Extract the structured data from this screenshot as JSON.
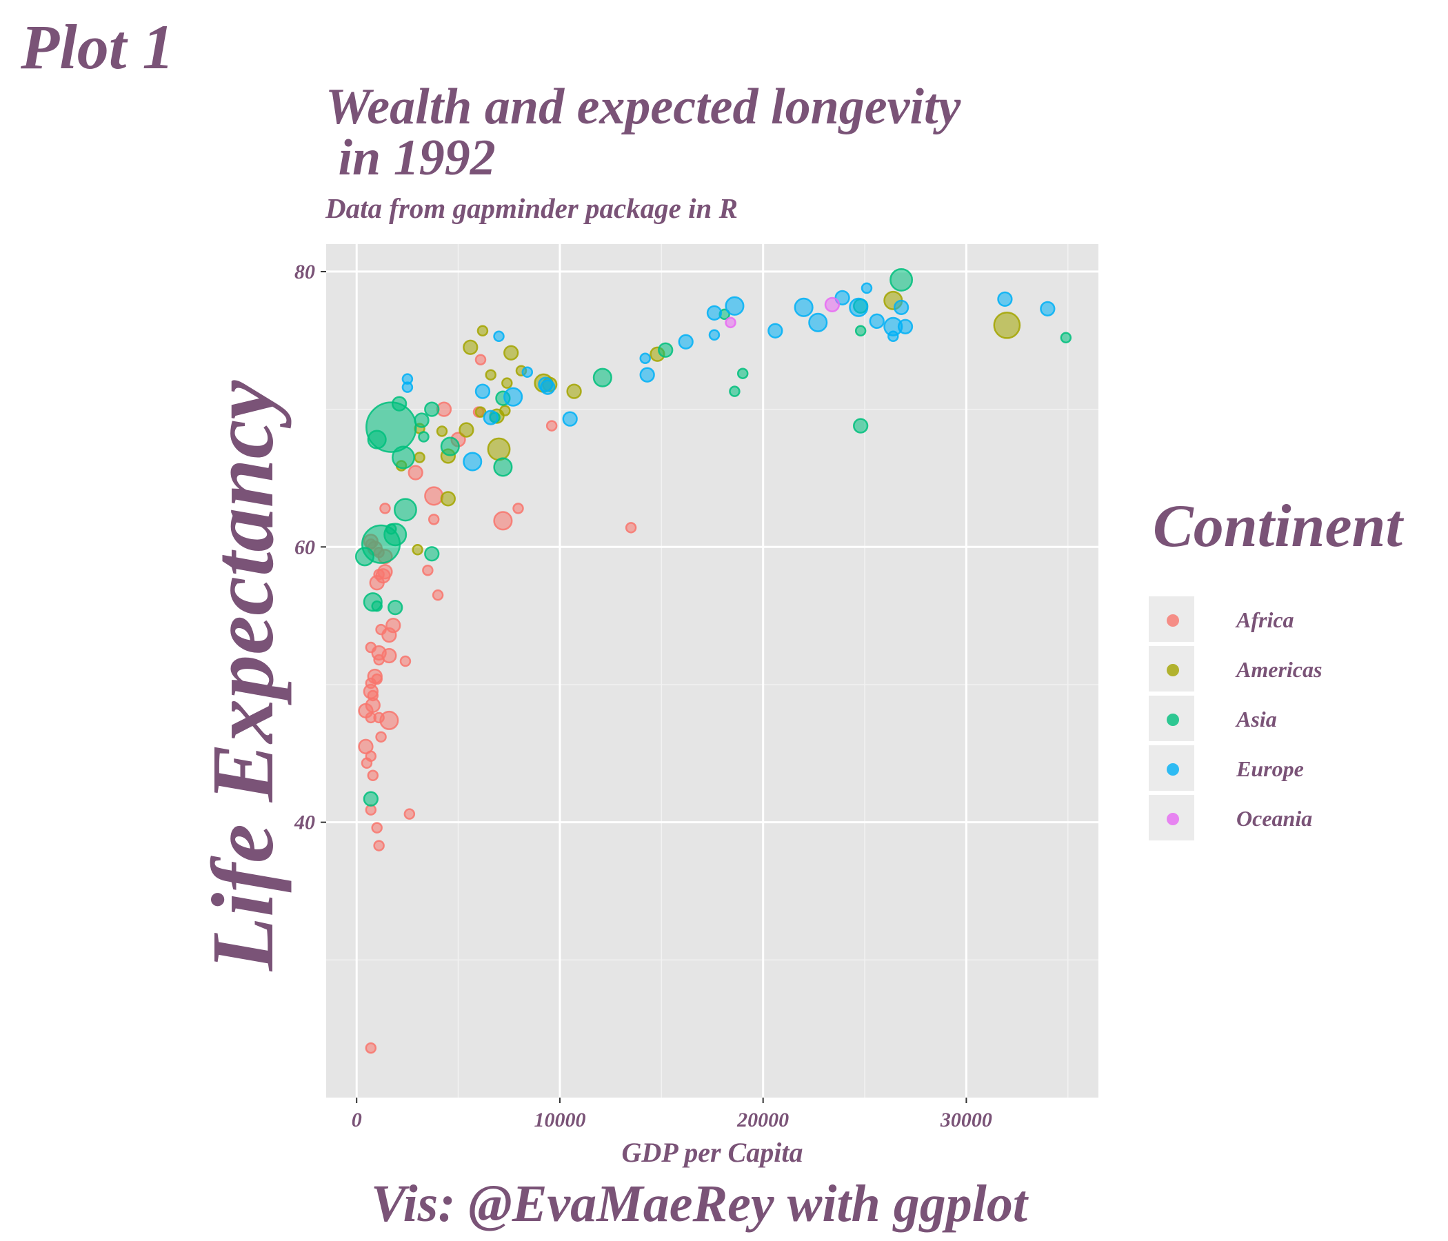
{
  "plot_label": "Plot 1",
  "chart_data": {
    "type": "scatter",
    "title": "Wealth and expected longevity\n in 1992",
    "subtitle": "Data from gapminder package in R",
    "caption": "Vis: @EvaMaeRey with ggplot",
    "xlabel": "GDP per Capita",
    "ylabel": "Life Expectancy",
    "xlim": [
      -1500,
      36500
    ],
    "ylim": [
      20,
      82
    ],
    "x_ticks": [
      0,
      10000,
      20000,
      30000
    ],
    "x_tick_labels": [
      "0",
      "10000",
      "20000",
      "30000"
    ],
    "y_ticks": [
      40,
      60,
      80
    ],
    "y_tick_labels": [
      "40",
      "60",
      "80"
    ],
    "grid": true,
    "legend": {
      "title": "Continent",
      "position": "right",
      "entries": [
        "Africa",
        "Americas",
        "Asia",
        "Europe",
        "Oceania"
      ]
    },
    "colors": {
      "Africa": "#f8766d",
      "Americas": "#a3a500",
      "Asia": "#00bf7d",
      "Europe": "#00b0f6",
      "Oceania": "#e76bf3"
    },
    "series": [
      {
        "name": "Africa",
        "points": [
          [
            700,
            23.6,
            1
          ],
          [
            2600,
            40.6,
            1
          ],
          [
            1100,
            38.3,
            1
          ],
          [
            1000,
            39.6,
            1
          ],
          [
            700,
            40.9,
            1
          ],
          [
            500,
            44.3,
            1
          ],
          [
            700,
            44.8,
            1
          ],
          [
            450,
            45.5,
            2
          ],
          [
            800,
            43.4,
            1
          ],
          [
            1200,
            46.2,
            1
          ],
          [
            1100,
            47.6,
            1
          ],
          [
            1600,
            47.4,
            3
          ],
          [
            700,
            47.6,
            1
          ],
          [
            450,
            48.1,
            2
          ],
          [
            800,
            48.5,
            2
          ],
          [
            800,
            49.2,
            1
          ],
          [
            700,
            49.5,
            2
          ],
          [
            700,
            50.1,
            1
          ],
          [
            900,
            50.6,
            2
          ],
          [
            1000,
            50.4,
            1
          ],
          [
            1100,
            51.8,
            1
          ],
          [
            1100,
            52.3,
            2
          ],
          [
            1600,
            52.1,
            2
          ],
          [
            700,
            52.7,
            1
          ],
          [
            2400,
            51.7,
            1
          ],
          [
            1600,
            53.6,
            2
          ],
          [
            1200,
            54.0,
            1
          ],
          [
            1800,
            54.3,
            2
          ],
          [
            4000,
            56.5,
            1
          ],
          [
            1000,
            57.4,
            2
          ],
          [
            1300,
            57.9,
            2
          ],
          [
            1400,
            58.2,
            2
          ],
          [
            1100,
            58.0,
            1
          ],
          [
            3500,
            58.3,
            1
          ],
          [
            1400,
            59.3,
            2
          ],
          [
            900,
            59.9,
            2
          ],
          [
            1100,
            59.6,
            1
          ],
          [
            700,
            60.2,
            1
          ],
          [
            700,
            60.4,
            2
          ],
          [
            3800,
            62.0,
            1
          ],
          [
            1400,
            62.8,
            1
          ],
          [
            7200,
            61.9,
            3
          ],
          [
            7950,
            62.8,
            1
          ],
          [
            3800,
            63.7,
            3
          ],
          [
            13500,
            61.4,
            1
          ],
          [
            2900,
            65.4,
            2
          ],
          [
            5000,
            67.8,
            2
          ],
          [
            9600,
            68.8,
            1
          ],
          [
            4300,
            70.0,
            2
          ],
          [
            6000,
            69.8,
            1
          ],
          [
            6100,
            73.6,
            1
          ]
        ]
      },
      {
        "name": "Americas",
        "points": [
          [
            3000,
            59.8,
            1
          ],
          [
            4500,
            63.5,
            2
          ],
          [
            2200,
            65.9,
            1
          ],
          [
            3100,
            66.5,
            1
          ],
          [
            4500,
            66.6,
            2
          ],
          [
            7000,
            67.1,
            4
          ],
          [
            5400,
            68.5,
            2
          ],
          [
            3100,
            68.6,
            1
          ],
          [
            4200,
            68.4,
            1
          ],
          [
            6900,
            69.5,
            2
          ],
          [
            7300,
            69.9,
            1
          ],
          [
            6100,
            69.8,
            1
          ],
          [
            10700,
            71.3,
            2
          ],
          [
            9200,
            71.9,
            3
          ],
          [
            9500,
            71.8,
            2
          ],
          [
            7400,
            71.9,
            1
          ],
          [
            8100,
            72.8,
            1
          ],
          [
            6600,
            72.5,
            1
          ],
          [
            14800,
            74.0,
            2
          ],
          [
            5600,
            74.5,
            2
          ],
          [
            7600,
            74.1,
            2
          ],
          [
            6200,
            75.7,
            1
          ],
          [
            26400,
            77.9,
            3
          ],
          [
            32000,
            76.1,
            5
          ]
        ]
      },
      {
        "name": "Asia",
        "points": [
          [
            700,
            41.7,
            2
          ],
          [
            400,
            59.3,
            3
          ],
          [
            1200,
            60.2,
            8
          ],
          [
            1900,
            60.9,
            4
          ],
          [
            2400,
            62.7,
            4
          ],
          [
            1700,
            61.3,
            1
          ],
          [
            3700,
            59.5,
            2
          ],
          [
            800,
            56.0,
            3
          ],
          [
            1000,
            55.7,
            1
          ],
          [
            1900,
            55.6,
            2
          ],
          [
            1700,
            68.7,
            11
          ],
          [
            2300,
            66.5,
            4
          ],
          [
            1000,
            67.8,
            3
          ],
          [
            4600,
            67.3,
            3
          ],
          [
            3300,
            68.0,
            1
          ],
          [
            3200,
            69.2,
            2
          ],
          [
            3700,
            70.0,
            2
          ],
          [
            2100,
            70.4,
            2
          ],
          [
            7200,
            65.8,
            3
          ],
          [
            7200,
            70.8,
            2
          ],
          [
            6800,
            69.4,
            1
          ],
          [
            12100,
            72.3,
            3
          ],
          [
            15200,
            74.3,
            2
          ],
          [
            18600,
            71.3,
            1
          ],
          [
            19000,
            72.6,
            1
          ],
          [
            18100,
            76.9,
            1
          ],
          [
            24800,
            68.8,
            2
          ],
          [
            24800,
            75.7,
            1
          ],
          [
            24800,
            77.5,
            2
          ],
          [
            26800,
            79.4,
            4
          ],
          [
            34900,
            75.2,
            1
          ]
        ]
      },
      {
        "name": "Europe",
        "points": [
          [
            2500,
            71.6,
            1
          ],
          [
            2500,
            72.2,
            1
          ],
          [
            5700,
            66.2,
            3
          ],
          [
            6200,
            71.3,
            2
          ],
          [
            6600,
            69.4,
            2
          ],
          [
            7700,
            70.9,
            3
          ],
          [
            8400,
            72.7,
            1
          ],
          [
            9300,
            71.8,
            2
          ],
          [
            9400,
            71.6,
            2
          ],
          [
            10500,
            69.3,
            2
          ],
          [
            14300,
            72.5,
            2
          ],
          [
            14200,
            73.7,
            1
          ],
          [
            7000,
            75.3,
            1
          ],
          [
            16200,
            74.9,
            2
          ],
          [
            17600,
            75.4,
            1
          ],
          [
            17600,
            77.0,
            2
          ],
          [
            18600,
            77.5,
            3
          ],
          [
            20600,
            75.7,
            2
          ],
          [
            22000,
            77.4,
            3
          ],
          [
            22700,
            76.3,
            3
          ],
          [
            23900,
            78.1,
            2
          ],
          [
            24700,
            77.4,
            3
          ],
          [
            25100,
            78.8,
            1
          ],
          [
            25600,
            76.4,
            2
          ],
          [
            26400,
            76.0,
            3
          ],
          [
            26400,
            75.3,
            1
          ],
          [
            26800,
            77.4,
            2
          ],
          [
            27000,
            76.0,
            2
          ],
          [
            31900,
            78.0,
            2
          ],
          [
            34000,
            77.3,
            2
          ]
        ]
      },
      {
        "name": "Oceania",
        "points": [
          [
            18400,
            76.3,
            1
          ],
          [
            23400,
            77.6,
            2
          ]
        ]
      }
    ]
  }
}
